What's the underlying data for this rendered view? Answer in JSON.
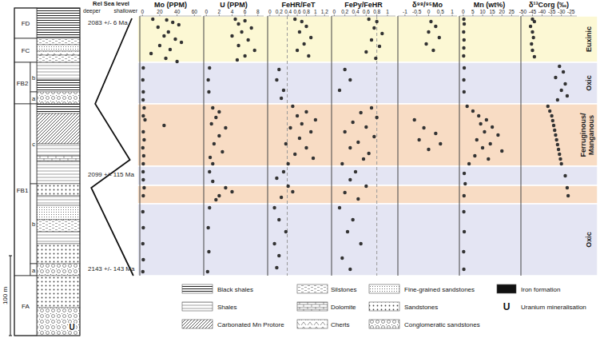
{
  "chart_data": [
    {
      "type": "scatter",
      "title": "Mo (PPM)",
      "xlim": [
        -3,
        68
      ],
      "xticks": [
        0,
        20,
        40,
        60
      ],
      "ylim": [
        0,
        325
      ],
      "tick_labels": "x",
      "marker": "circle",
      "color": "#333333",
      "x": [
        12,
        28,
        35,
        42,
        18,
        30,
        25,
        38,
        45,
        20,
        32,
        10,
        27,
        40,
        1,
        0.5,
        1,
        0.8,
        2,
        1,
        3,
        25,
        1,
        2,
        0.5,
        1.5,
        1,
        0.8,
        1,
        2,
        1,
        0.5,
        1,
        0.5,
        1,
        0.5
      ],
      "values": [
        321,
        320,
        317,
        314,
        311,
        305,
        300,
        296,
        292,
        288,
        283,
        278,
        272,
        268,
        260,
        245,
        230,
        220,
        210,
        200,
        195,
        188,
        180,
        170,
        160,
        150,
        140,
        130,
        120,
        110,
        100,
        80,
        60,
        40,
        20,
        5
      ]
    },
    {
      "type": "scatter",
      "title": "U (PPM)",
      "xlim": [
        -0.4,
        8.9
      ],
      "xticks": [
        0,
        2,
        4,
        6,
        8
      ],
      "ylim": [
        0,
        325
      ],
      "tick_labels": "x",
      "marker": "circle",
      "color": "#333333",
      "x": [
        4.5,
        6,
        5,
        7,
        5.5,
        4,
        6.5,
        5,
        7.5,
        6,
        4.8,
        0.5,
        0.3,
        0.4,
        1,
        2,
        1.5,
        0.8,
        3,
        2,
        1.2,
        2.5,
        0.6,
        1,
        0.5,
        1,
        3,
        4,
        2,
        1.5,
        0.5,
        0.3,
        0.4,
        0.2
      ],
      "values": [
        321,
        319,
        315,
        310,
        305,
        300,
        295,
        288,
        282,
        275,
        270,
        260,
        245,
        230,
        210,
        205,
        198,
        190,
        185,
        175,
        165,
        155,
        148,
        140,
        130,
        118,
        110,
        105,
        100,
        95,
        85,
        60,
        30,
        5
      ]
    },
    {
      "type": "scatter",
      "title": "FeHR/FeT",
      "xlim": [
        -0.05,
        1.3
      ],
      "xticks": [
        0,
        0.2,
        0.4,
        0.6,
        0.8,
        1,
        1.2
      ],
      "ylim": [
        0,
        325
      ],
      "tick_labels": "x",
      "marker": "circle",
      "color": "#333333",
      "threshold": 0.38,
      "x": [
        0.55,
        0.7,
        0.8,
        0.65,
        0.9,
        0.75,
        0.6,
        0.85,
        0.2,
        0.15,
        0.3,
        0.25,
        0.5,
        0.8,
        0.6,
        1.0,
        0.7,
        0.45,
        0.9,
        0.65,
        0.35,
        0.8,
        0.55,
        0.95,
        0.4,
        0.3,
        0.15,
        0.4,
        0.5,
        0.25,
        0.1,
        0.2,
        0.35,
        0.1,
        0.2,
        0.15
      ],
      "values": [
        321,
        318,
        312,
        305,
        298,
        290,
        282,
        275,
        258,
        245,
        232,
        222,
        212,
        205,
        200,
        195,
        190,
        185,
        180,
        172,
        165,
        160,
        152,
        147,
        140,
        130,
        122,
        112,
        105,
        98,
        85,
        70,
        55,
        40,
        25,
        10
      ]
    },
    {
      "type": "scatter",
      "title": "FePy/FeHR",
      "xlim": [
        -0.05,
        1.15
      ],
      "xticks": [
        0,
        0.2,
        0.4,
        0.6,
        0.8,
        1
      ],
      "ylim": [
        0,
        325
      ],
      "tick_labels": "x",
      "marker": "circle",
      "color": "#333333",
      "threshold": 0.8,
      "x": [
        0.65,
        0.8,
        0.75,
        0.9,
        0.7,
        0.85,
        0.6,
        0.78,
        0.2,
        0.3,
        0.1,
        0.7,
        0.5,
        0.8,
        0.35,
        0.6,
        0.2,
        0.75,
        0.45,
        0.3,
        0.65,
        0.55,
        0.15,
        0.4,
        0.3,
        0.6,
        0.2,
        0.45,
        0.1,
        0.35,
        0.25,
        0.5,
        0.15,
        0.3
      ],
      "values": [
        321,
        318,
        310,
        303,
        295,
        287,
        280,
        272,
        258,
        245,
        232,
        210,
        204,
        198,
        192,
        186,
        180,
        174,
        167,
        160,
        153,
        146,
        140,
        130,
        120,
        112,
        104,
        96,
        85,
        70,
        55,
        40,
        22,
        8
      ]
    },
    {
      "type": "scatter",
      "title": "δ⁹⁸/⁹⁵Mo",
      "xlim": [
        -1.3,
        1.2
      ],
      "xticks": [
        -1,
        -0.5,
        0,
        0.5,
        1
      ],
      "ylim": [
        0,
        325
      ],
      "tick_labels": "x",
      "marker": "circle",
      "color": "#333333",
      "x": [
        0.1,
        0.3,
        0,
        0.45,
        -0.1,
        0.2,
        -0.6,
        -0.2,
        0.3,
        -0.4,
        0.5,
        0
      ],
      "values": [
        318,
        312,
        305,
        298,
        290,
        282,
        195,
        185,
        178,
        170,
        165,
        158
      ]
    },
    {
      "type": "scatter",
      "title": "Mn (wt%)",
      "xlim": [
        -2,
        29
      ],
      "xticks": [
        0,
        5,
        10,
        15,
        20,
        25
      ],
      "ylim": [
        0,
        325
      ],
      "tick_labels": "x",
      "marker": "circle",
      "color": "#333333",
      "x": [
        0.3,
        0.5,
        0.2,
        0.4,
        0.3,
        0.2,
        0.5,
        0.3,
        0.4,
        2,
        5,
        8,
        12,
        9,
        15,
        11,
        18,
        7,
        14,
        10,
        20,
        6,
        13,
        3,
        0.5,
        1,
        0.4,
        0.3,
        0.5,
        0.2,
        0.3
      ],
      "values": [
        321,
        315,
        305,
        295,
        285,
        275,
        260,
        245,
        230,
        212,
        206,
        200,
        195,
        190,
        186,
        180,
        176,
        170,
        165,
        160,
        156,
        150,
        146,
        140,
        128,
        115,
        100,
        80,
        55,
        30,
        8
      ]
    },
    {
      "type": "scatter",
      "title": "δ¹³Corg (‰)",
      "xlim": [
        -51,
        -22
      ],
      "xticks": [
        -50,
        -45,
        -40,
        -35,
        -30,
        -25
      ],
      "ylim": [
        0,
        325
      ],
      "tick_labels": "x",
      "marker": "circle",
      "color": "#333333",
      "x": [
        -45,
        -44,
        -46,
        -45,
        -44.5,
        -45.5,
        -45,
        -44,
        -31,
        -29,
        -33,
        -28,
        -30,
        -27,
        -32,
        -37,
        -36,
        -35,
        -34.5,
        -34,
        -33.5,
        -33,
        -32.5,
        -32,
        -31.5,
        -31,
        -30.5,
        -30,
        -28,
        -27,
        -26.5
      ],
      "values": [
        321,
        318,
        312,
        305,
        298,
        290,
        282,
        274,
        262,
        255,
        248,
        240,
        232,
        225,
        220,
        212,
        206,
        200,
        194,
        188,
        182,
        176,
        170,
        164,
        158,
        152,
        146,
        140,
        125,
        110,
        100
      ]
    }
  ],
  "bands": [
    {
      "from": 267,
      "to": 325,
      "label": "Euxinic",
      "color": "#fcf8d4"
    },
    {
      "from": 215,
      "to": 267,
      "label": "Oxic",
      "color": "#e4e5f3"
    },
    {
      "from": 137,
      "to": 215,
      "label": "Ferruginous/Manganous",
      "color": "#f8dcc4"
    },
    {
      "from": 113,
      "to": 137,
      "color": "#e4e5f3"
    },
    {
      "from": 90,
      "to": 113,
      "color": "#f8dcc4"
    },
    {
      "from": 0,
      "to": 90,
      "label": "Oxic",
      "color": "#e4e5f3"
    }
  ],
  "sea_level": {
    "title": "Rel Sea level",
    "deeper": "deeper",
    "shallower": "shallower",
    "xlim": [
      0,
      1
    ],
    "values": [
      0.92,
      0.18,
      0.88,
      0.1,
      0.95
    ],
    "heights": [
      322,
      215,
      145,
      110,
      0
    ]
  },
  "ages": [
    {
      "label": "2083 +/- 6 Ma",
      "height": 317
    },
    {
      "label": "2099 +/- 115 Ma",
      "height": 127
    },
    {
      "label": "2143 +/- 143 Ma",
      "height": 9
    }
  ],
  "column": {
    "ylim": [
      -75,
      335
    ],
    "scale_bar": {
      "label": "100 m",
      "value": 100
    },
    "formations": [
      {
        "name": "FD",
        "from": 297,
        "to": 335
      },
      {
        "name": "FC",
        "from": 267,
        "to": 297
      },
      {
        "name": "FB2",
        "from": 215,
        "to": 267,
        "members": [
          {
            "name": "b",
            "from": 230,
            "to": 267
          },
          {
            "name": "a",
            "from": 215,
            "to": 230
          }
        ]
      },
      {
        "name": "FB1",
        "from": 0,
        "to": 215,
        "members": [
          {
            "name": "c",
            "from": 115,
            "to": 215
          },
          {
            "name": "b",
            "from": 15,
            "to": 115
          },
          {
            "name": "a",
            "from": 0,
            "to": 15
          }
        ]
      },
      {
        "name": "FA",
        "from": -75,
        "to": 0
      }
    ],
    "layers": [
      {
        "from": 297,
        "to": 335,
        "lithology": "Black shales"
      },
      {
        "from": 289,
        "to": 297,
        "lithology": "Silstones"
      },
      {
        "from": 281,
        "to": 289,
        "lithology": "Fine-grained sandstones"
      },
      {
        "from": 276,
        "to": 281,
        "lithology": "Cherts"
      },
      {
        "from": 267,
        "to": 276,
        "lithology": "Silstones"
      },
      {
        "from": 245,
        "to": 267,
        "lithology": "Shales"
      },
      {
        "from": 230,
        "to": 245,
        "lithology": "Black shales"
      },
      {
        "from": 215,
        "to": 230,
        "lithology": "Conglomeratic sandstones"
      },
      {
        "from": 203,
        "to": 215,
        "lithology": "Black shales"
      },
      {
        "from": 165,
        "to": 203,
        "lithology": "Carbonated Mn Protore"
      },
      {
        "from": 150,
        "to": 165,
        "lithology": "Shales"
      },
      {
        "from": 143,
        "to": 150,
        "lithology": "Dolomite"
      },
      {
        "from": 115,
        "to": 143,
        "lithology": "Shales"
      },
      {
        "from": 100,
        "to": 115,
        "lithology": "Sandstones"
      },
      {
        "from": 88,
        "to": 100,
        "lithology": "Shales"
      },
      {
        "from": 70,
        "to": 88,
        "lithology": "Fine-grained sandstones"
      },
      {
        "from": 55,
        "to": 70,
        "lithology": "Silstones"
      },
      {
        "from": 40,
        "to": 55,
        "lithology": "Shales"
      },
      {
        "from": 15,
        "to": 40,
        "lithology": "Sandstones"
      },
      {
        "from": 0,
        "to": 15,
        "lithology": "Conglomeratic sandstones"
      },
      {
        "from": -40,
        "to": 0,
        "lithology": "Sandstones"
      },
      {
        "from": -75,
        "to": -40,
        "lithology": "Conglomeratic sandstones"
      }
    ],
    "uranium_heights": [
      -65
    ]
  },
  "lithology_legend": [
    {
      "label": "Black shales"
    },
    {
      "label": "Shales"
    },
    {
      "label": "Carbonated Mn Protore"
    },
    {
      "label": "Silstones"
    },
    {
      "label": "Dolomite"
    },
    {
      "label": "Cherts"
    },
    {
      "label": "Fine-grained sandstones"
    },
    {
      "label": "Sandstones"
    },
    {
      "label": "Conglomeratic sandstones"
    },
    {
      "label": "Iron formation"
    },
    {
      "label": "Uranium mineralisation",
      "symbol": "U"
    }
  ]
}
